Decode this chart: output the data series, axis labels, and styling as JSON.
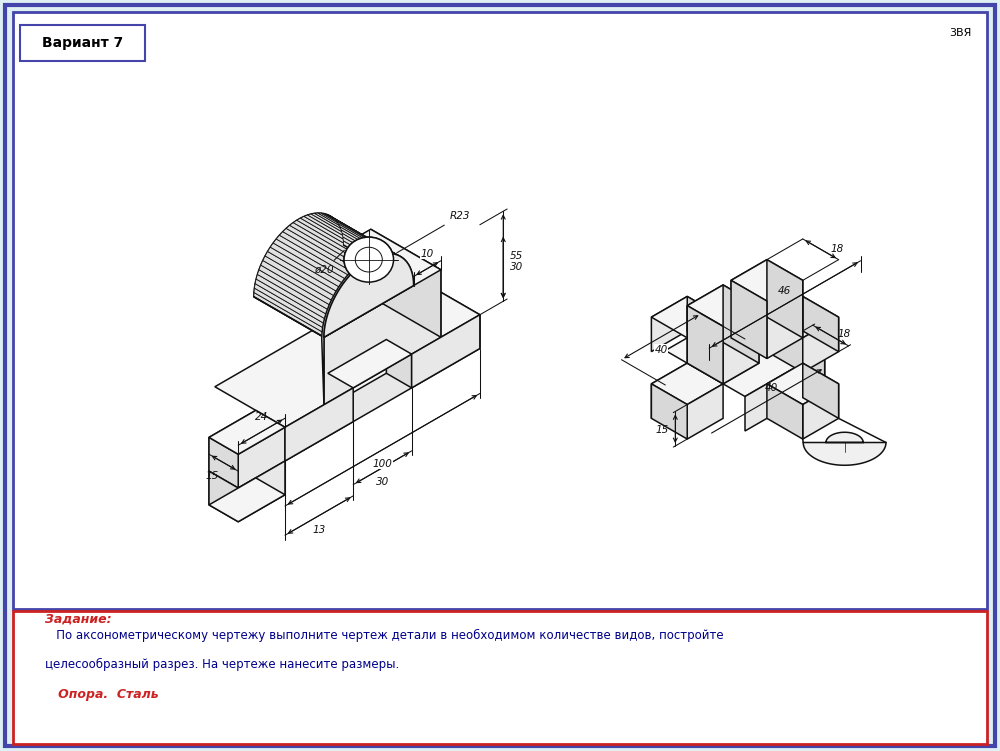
{
  "bg_color": "#dff0f5",
  "outer_border_color": "#4444aa",
  "inner_border_color": "#cc2222",
  "variant_text": "Вариант 7",
  "corner_text": "3ВЯ",
  "task_label": "Задание:",
  "task_text1": "   По аксонометрическому чертежу выполните чертеж детали в необходимом количестве видов, постройте",
  "task_text2": "целесообразный разрез. На чертеже нанесите размеры.",
  "task_text3": "   Опора.  Сталь",
  "task_color": "#cc2222",
  "task_body_color": "#00008b",
  "line_color": "#111111",
  "dim_color": "#111111"
}
